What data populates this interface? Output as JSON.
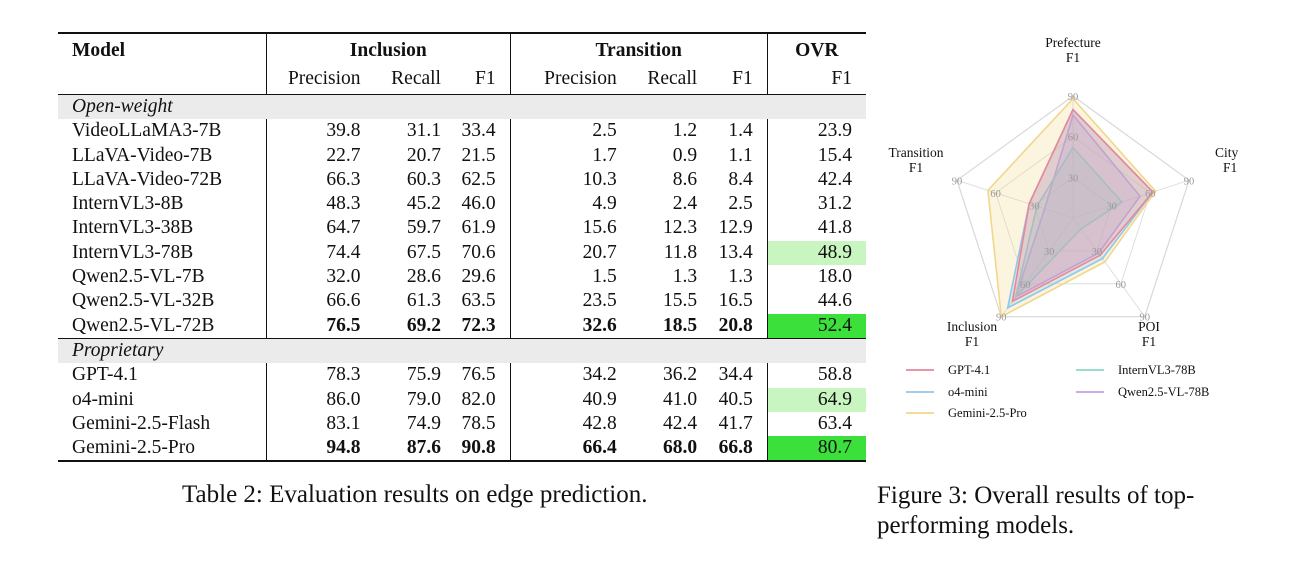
{
  "table": {
    "header": {
      "model": "Model",
      "inclusion": "Inclusion",
      "transition": "Transition",
      "ovr": "OVR",
      "precision": "Precision",
      "recall": "Recall",
      "f1": "F1"
    },
    "groups": [
      {
        "label": "Open-weight",
        "rows": [
          {
            "model": "VideoLLaMA3-7B",
            "values": [
              "39.8",
              "31.1",
              "33.4",
              "2.5",
              "1.2",
              "1.4",
              "23.9"
            ],
            "bold": [],
            "ovr_highlight": ""
          },
          {
            "model": "LLaVA-Video-7B",
            "values": [
              "22.7",
              "20.7",
              "21.5",
              "1.7",
              "0.9",
              "1.1",
              "15.4"
            ],
            "bold": [],
            "ovr_highlight": ""
          },
          {
            "model": "LLaVA-Video-72B",
            "values": [
              "66.3",
              "60.3",
              "62.5",
              "10.3",
              "8.6",
              "8.4",
              "42.4"
            ],
            "bold": [],
            "ovr_highlight": ""
          },
          {
            "model": "InternVL3-8B",
            "values": [
              "48.3",
              "45.2",
              "46.0",
              "4.9",
              "2.4",
              "2.5",
              "31.2"
            ],
            "bold": [],
            "ovr_highlight": ""
          },
          {
            "model": "InternVL3-38B",
            "values": [
              "64.7",
              "59.7",
              "61.9",
              "15.6",
              "12.3",
              "12.9",
              "41.8"
            ],
            "bold": [],
            "ovr_highlight": ""
          },
          {
            "model": "InternVL3-78B",
            "values": [
              "74.4",
              "67.5",
              "70.6",
              "20.7",
              "11.8",
              "13.4",
              "48.9"
            ],
            "bold": [],
            "ovr_highlight": "light"
          },
          {
            "model": "Qwen2.5-VL-7B",
            "values": [
              "32.0",
              "28.6",
              "29.6",
              "1.5",
              "1.3",
              "1.3",
              "18.0"
            ],
            "bold": [],
            "ovr_highlight": ""
          },
          {
            "model": "Qwen2.5-VL-32B",
            "values": [
              "66.6",
              "61.3",
              "63.5",
              "23.5",
              "15.5",
              "16.5",
              "44.6"
            ],
            "bold": [],
            "ovr_highlight": ""
          },
          {
            "model": "Qwen2.5-VL-72B",
            "values": [
              "76.5",
              "69.2",
              "72.3",
              "32.6",
              "18.5",
              "20.8",
              "52.4"
            ],
            "bold": [
              0,
              1,
              2,
              3,
              4,
              5
            ],
            "ovr_highlight": "strong"
          }
        ]
      },
      {
        "label": "Proprietary",
        "rows": [
          {
            "model": "GPT-4.1",
            "values": [
              "78.3",
              "75.9",
              "76.5",
              "34.2",
              "36.2",
              "34.4",
              "58.8"
            ],
            "bold": [],
            "ovr_highlight": ""
          },
          {
            "model": "o4-mini",
            "values": [
              "86.0",
              "79.0",
              "82.0",
              "40.9",
              "41.0",
              "40.5",
              "64.9"
            ],
            "bold": [],
            "ovr_highlight": "light"
          },
          {
            "model": "Gemini-2.5-Flash",
            "values": [
              "83.1",
              "74.9",
              "78.5",
              "42.8",
              "42.4",
              "41.7",
              "63.4"
            ],
            "bold": [],
            "ovr_highlight": ""
          },
          {
            "model": "Gemini-2.5-Pro",
            "values": [
              "94.8",
              "87.6",
              "90.8",
              "66.4",
              "68.0",
              "66.8",
              "80.7"
            ],
            "bold": [
              0,
              1,
              2,
              3,
              4,
              5
            ],
            "ovr_highlight": "strong"
          }
        ]
      }
    ],
    "caption": "Table 2: Evaluation results on edge prediction."
  },
  "chart_data": {
    "type": "radar",
    "axes": [
      {
        "name": "Prefecture",
        "sub": "F1"
      },
      {
        "name": "City",
        "sub": "F1"
      },
      {
        "name": "POI",
        "sub": "F1"
      },
      {
        "name": "Inclusion",
        "sub": "F1"
      },
      {
        "name": "Transition",
        "sub": "F1"
      }
    ],
    "rmax": 90,
    "ticks": [
      "30",
      "60",
      "90"
    ],
    "series": [
      {
        "name": "GPT-4.1",
        "color": "#e8879c",
        "values": [
          80,
          62,
          34,
          76,
          34
        ]
      },
      {
        "name": "InternVL3-78B",
        "color": "#8fd6c8",
        "values": [
          52,
          38,
          10,
          72,
          28
        ]
      },
      {
        "name": "o4-mini",
        "color": "#8fc8ea",
        "values": [
          80,
          62,
          37,
          82,
          34
        ]
      },
      {
        "name": "Qwen2.5-VL-78B",
        "color": "#bfa3e3",
        "values": [
          76,
          52,
          32,
          72,
          22
        ]
      },
      {
        "name": "Gemini-2.5-Pro",
        "color": "#f2d68c",
        "values": [
          88,
          64,
          40,
          90,
          66
        ]
      }
    ],
    "legend": [
      "GPT-4.1",
      "InternVL3-78B",
      "o4-mini",
      "Qwen2.5-VL-78B",
      "Gemini-2.5-Pro"
    ],
    "grid": true,
    "legend_position": "bottom"
  },
  "figure_caption": "Figure 3: Overall results of top-performing models."
}
